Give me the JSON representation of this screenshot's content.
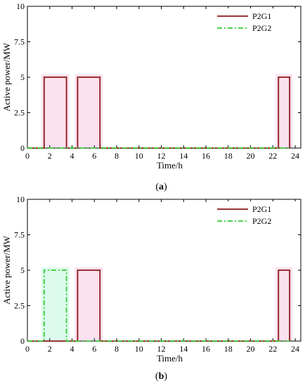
{
  "colors": {
    "p2g1": "#8b1a1a",
    "p2g2": "#33cc33",
    "p2g1_glow": "#f7c6e0",
    "p2g2_glow": "#bff7dc",
    "axis": "#000000"
  },
  "chart_data": [
    {
      "type": "line",
      "panel_label": "a",
      "xlabel": "Time/h",
      "ylabel": "Active power/MW",
      "xlim": [
        0,
        24.5
      ],
      "ylim": [
        0,
        10
      ],
      "xticks": [
        0,
        2,
        4,
        6,
        8,
        10,
        12,
        14,
        16,
        18,
        20,
        22,
        24
      ],
      "yticks": [
        0,
        2.5,
        5,
        7.5,
        10
      ],
      "ytick_labels": [
        "0",
        "2.5",
        "5",
        "7.5",
        "10"
      ],
      "legend_position": "top-right",
      "grid": false,
      "series": [
        {
          "name": "P2G1",
          "style": "solid",
          "x": [
            0,
            1.5,
            1.5,
            3.5,
            3.5,
            4.5,
            4.5,
            6.5,
            6.5,
            22.5,
            22.5,
            23.5,
            23.5
          ],
          "y": [
            0,
            0,
            5,
            5,
            0,
            0,
            5,
            5,
            0,
            0,
            5,
            5,
            0
          ]
        },
        {
          "name": "P2G2",
          "style": "dash-dot",
          "x": [
            0,
            23.5
          ],
          "y": [
            0,
            0
          ]
        }
      ]
    },
    {
      "type": "line",
      "panel_label": "b",
      "xlabel": "Time/h",
      "ylabel": "Active power/MW",
      "xlim": [
        0,
        24.5
      ],
      "ylim": [
        0,
        10
      ],
      "xticks": [
        0,
        2,
        4,
        6,
        8,
        10,
        12,
        14,
        16,
        18,
        20,
        22,
        24
      ],
      "yticks": [
        0,
        2.5,
        5,
        7.5,
        10
      ],
      "ytick_labels": [
        "0",
        "2.5",
        "5",
        "7.5",
        "10"
      ],
      "legend_position": "top-right",
      "grid": false,
      "series": [
        {
          "name": "P2G1",
          "style": "solid",
          "x": [
            0,
            4.5,
            4.5,
            6.5,
            6.5,
            22.5,
            22.5,
            23.5,
            23.5
          ],
          "y": [
            0,
            0,
            5,
            5,
            0,
            0,
            5,
            5,
            0
          ]
        },
        {
          "name": "P2G2",
          "style": "dash-dot",
          "x": [
            0,
            1.5,
            1.5,
            3.5,
            3.5,
            23.5
          ],
          "y": [
            0,
            0,
            5,
            5,
            0,
            0
          ]
        }
      ]
    }
  ]
}
